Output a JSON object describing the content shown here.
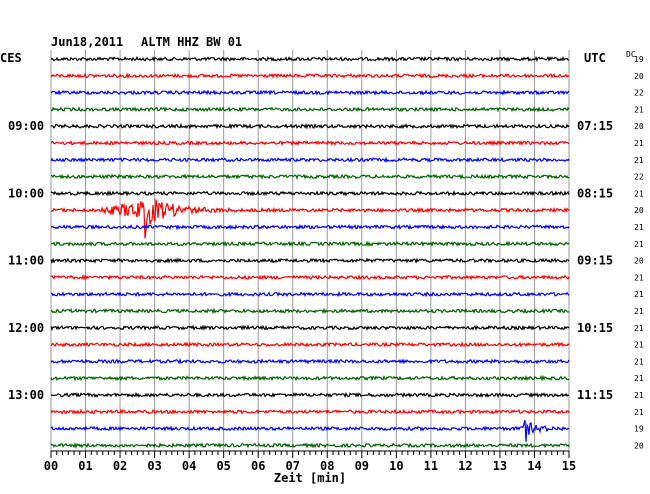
{
  "header": {
    "date": "Jun18,2011",
    "station": "ALTM HHZ BW 01",
    "left_tz": "CES",
    "right_tz": "UTC",
    "dc_label": "DC"
  },
  "chart_data": {
    "type": "line",
    "title": "Jun18,2011   ALTM HHZ BW 01",
    "xlabel": "Zeit [min]",
    "ylabel": "",
    "xlim": [
      0,
      15
    ],
    "x_ticks": [
      "00",
      "01",
      "02",
      "03",
      "04",
      "05",
      "06",
      "07",
      "08",
      "09",
      "10",
      "11",
      "12",
      "13",
      "14",
      "15"
    ],
    "grid": true,
    "trace_colors": [
      "#000000",
      "#ff0000",
      "#0000ff",
      "#006400"
    ],
    "left_time_labels": [
      {
        "row": 4,
        "text": "09:00"
      },
      {
        "row": 8,
        "text": "10:00"
      },
      {
        "row": 12,
        "text": "11:00"
      },
      {
        "row": 16,
        "text": "12:00"
      },
      {
        "row": 20,
        "text": "13:00"
      }
    ],
    "right_time_labels": [
      {
        "row": 4,
        "text": "07:15"
      },
      {
        "row": 8,
        "text": "08:15"
      },
      {
        "row": 12,
        "text": "09:15"
      },
      {
        "row": 16,
        "text": "10:15"
      },
      {
        "row": 20,
        "text": "11:15"
      }
    ],
    "dc_values": [
      "19",
      "20",
      "22",
      "21",
      "20",
      "21",
      "21",
      "22",
      "21",
      "20",
      "21",
      "21",
      "20",
      "21",
      "21",
      "21",
      "21",
      "21",
      "21",
      "21",
      "21",
      "21",
      "19",
      "20"
    ],
    "events": [
      {
        "row": 9,
        "start_min": 1.3,
        "peak_min": 2.7,
        "end_min": 5.5,
        "amplitude": 30
      },
      {
        "row": 22,
        "start_min": 13.5,
        "peak_min": 13.7,
        "end_min": 15.0,
        "amplitude": 14
      }
    ],
    "trace_count": 24
  }
}
